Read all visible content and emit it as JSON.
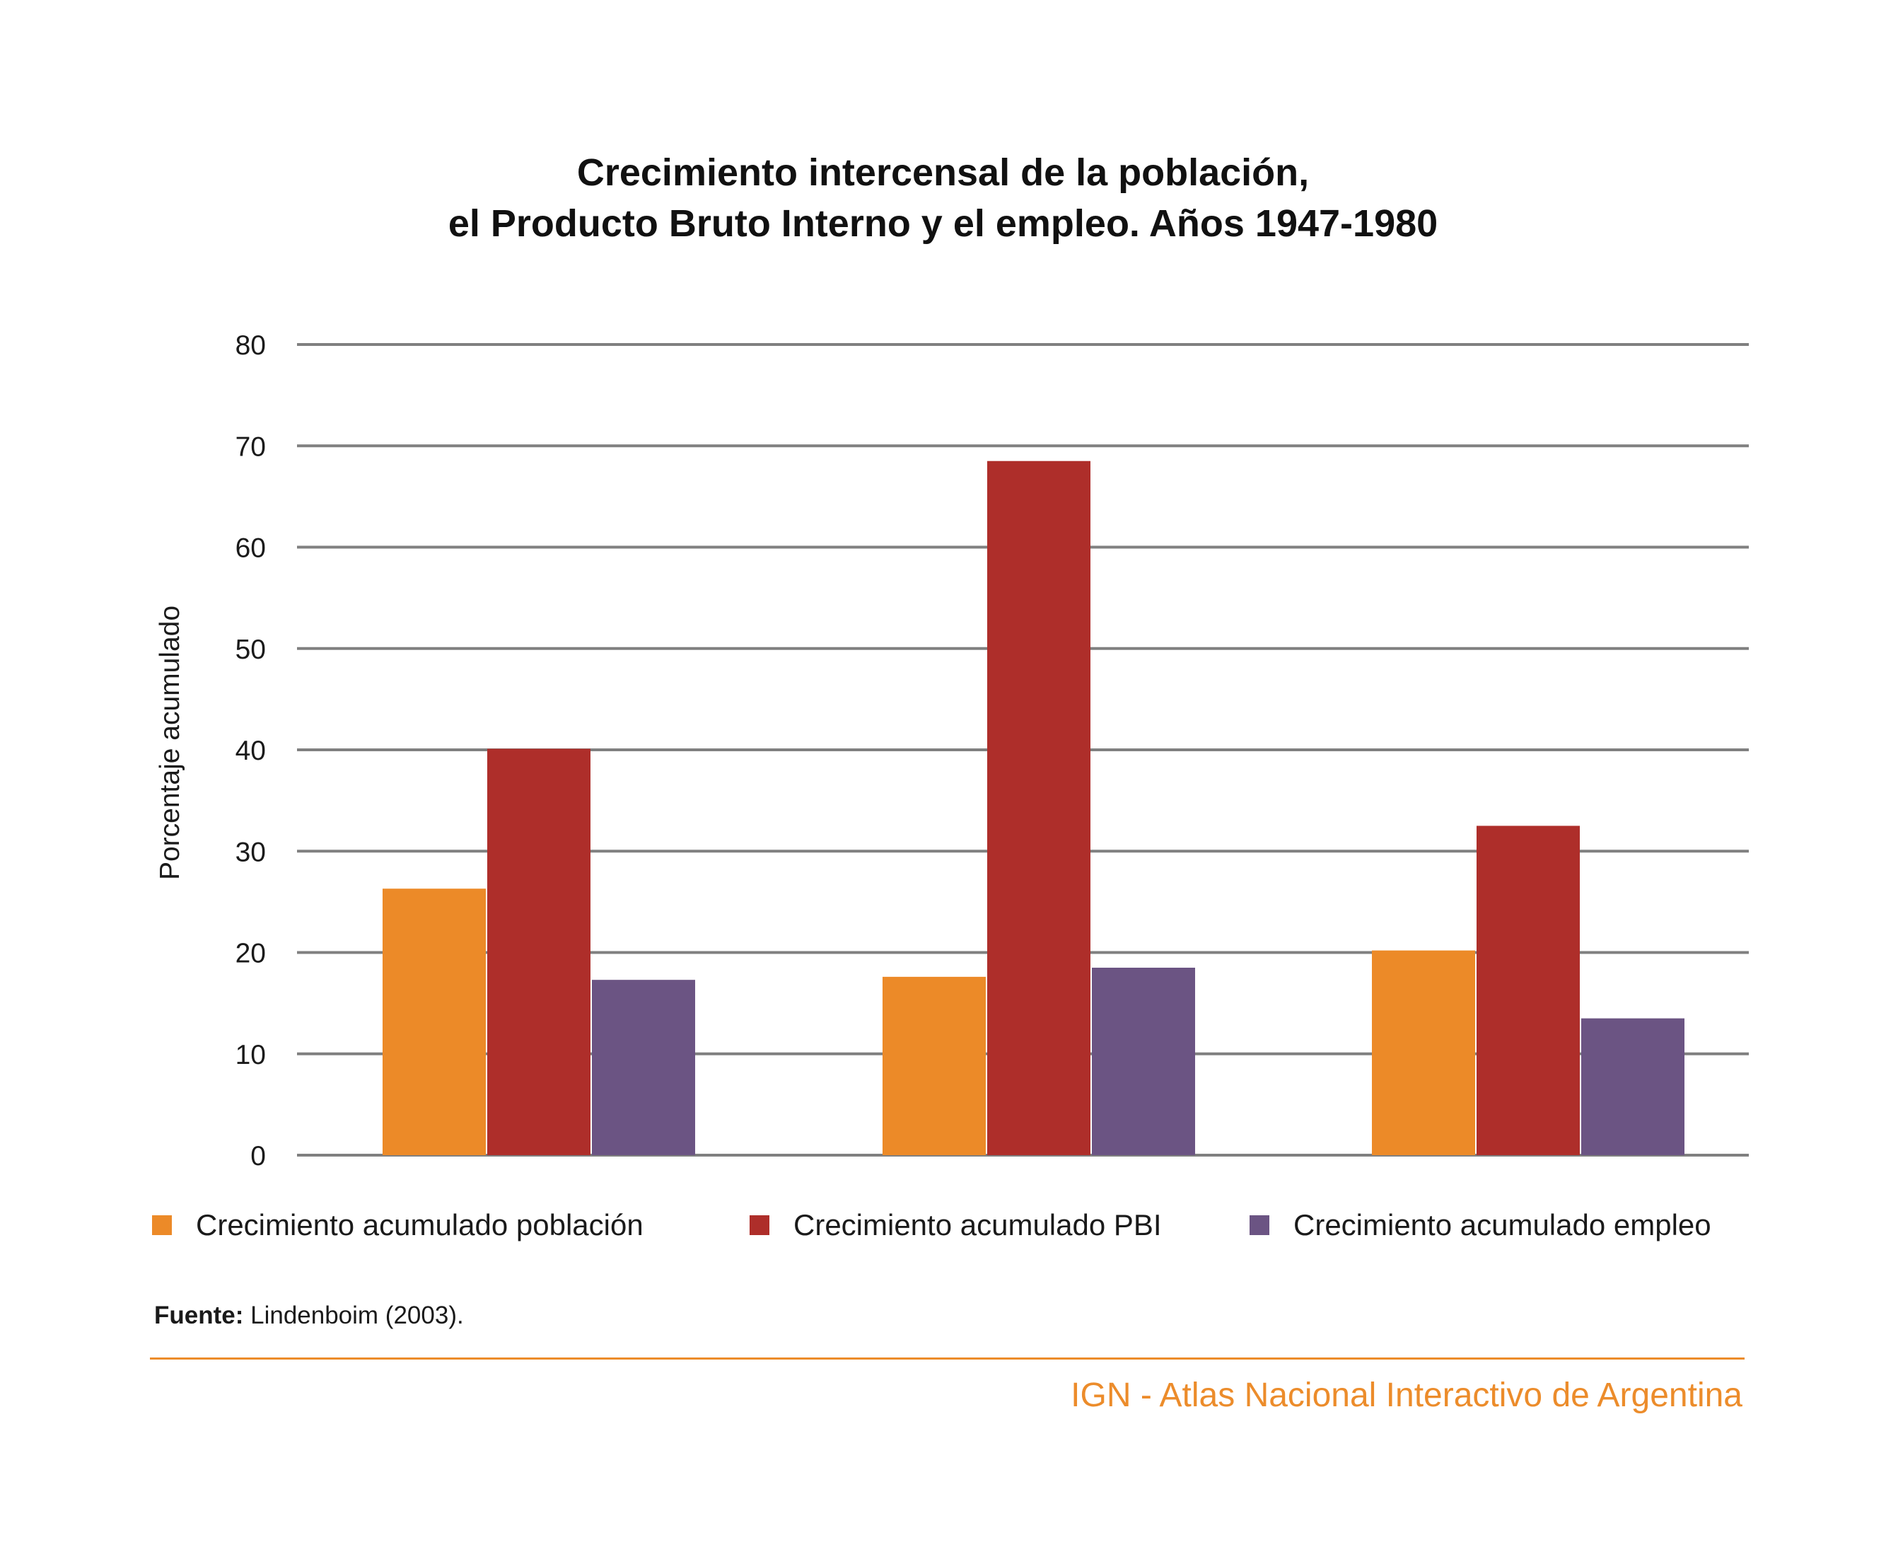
{
  "chart_data": {
    "type": "bar",
    "title": [
      "Crecimiento intercensal de la población,",
      "el Producto Bruto Interno y el empleo. Años 1947-1980"
    ],
    "ylabel": "Porcentaje acumulado",
    "xlabel": "",
    "categories": [
      "",
      "",
      ""
    ],
    "ylim": [
      0,
      80
    ],
    "yticks": [
      0,
      10,
      20,
      30,
      40,
      50,
      60,
      70,
      80
    ],
    "grid": true,
    "legend_position": "bottom",
    "series": [
      {
        "name": "Crecimiento acumulado población",
        "color": "#ec8a28",
        "values": [
          26.3,
          17.6,
          20.2
        ]
      },
      {
        "name": "Crecimiento acumulado PBI",
        "color": "#ae2e2a",
        "values": [
          40.1,
          68.5,
          32.5
        ]
      },
      {
        "name": "Crecimiento acumulado empleo",
        "color": "#6b5483",
        "values": [
          17.3,
          18.5,
          13.5
        ]
      }
    ]
  },
  "source": {
    "label": "Fuente:",
    "text": " Lindenboim (2003)."
  },
  "footer": "IGN - Atlas Nacional Interactivo de Argentina",
  "colors": {
    "grid": "#808080",
    "accent": "#ec8c2b"
  }
}
